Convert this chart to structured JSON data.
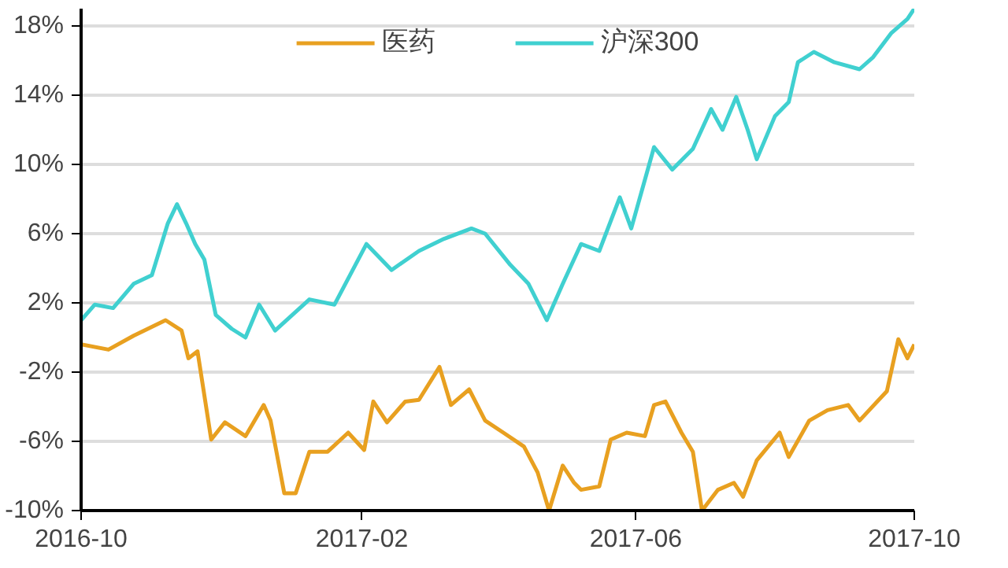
{
  "chart_data": {
    "type": "line",
    "xlim": [
      "2016-10-01",
      "2017-10-01"
    ],
    "ylim": [
      -10,
      19
    ],
    "xticks": [
      "2016-10",
      "2017-02",
      "2017-06",
      "2017-10"
    ],
    "yticks": [
      {
        "value": 18,
        "label": "18%"
      },
      {
        "value": 14,
        "label": "14%"
      },
      {
        "value": 10,
        "label": "10%"
      },
      {
        "value": 6,
        "label": "6%"
      },
      {
        "value": 2,
        "label": "2%"
      },
      {
        "value": -2,
        "label": "-2%"
      },
      {
        "value": -6,
        "label": "-6%"
      },
      {
        "value": -10,
        "label": "-10%"
      }
    ],
    "grid": "y",
    "legend": "top",
    "line_style": "solid",
    "series": [
      {
        "name": "医药",
        "color": "#e8a020",
        "x": [
          "2016-10-01",
          "2016-10-13",
          "2016-10-24",
          "2016-11-07",
          "2016-11-14",
          "2016-11-17",
          "2016-11-21",
          "2016-11-27",
          "2016-12-03",
          "2016-12-12",
          "2016-12-20",
          "2016-12-23",
          "2016-12-29",
          "2017-01-03",
          "2017-01-09",
          "2017-01-17",
          "2017-01-26",
          "2017-02-02",
          "2017-02-06",
          "2017-02-12",
          "2017-02-20",
          "2017-02-26",
          "2017-03-07",
          "2017-03-12",
          "2017-03-20",
          "2017-03-27",
          "2017-04-04",
          "2017-04-13",
          "2017-04-19",
          "2017-04-24",
          "2017-04-30",
          "2017-05-05",
          "2017-05-08",
          "2017-05-16",
          "2017-05-21",
          "2017-05-28",
          "2017-06-05",
          "2017-06-09",
          "2017-06-14",
          "2017-06-21",
          "2017-06-26",
          "2017-06-30",
          "2017-07-07",
          "2017-07-14",
          "2017-07-18",
          "2017-07-24",
          "2017-08-03",
          "2017-08-07",
          "2017-08-16",
          "2017-08-24",
          "2017-09-02",
          "2017-09-07",
          "2017-09-19",
          "2017-09-24",
          "2017-09-28",
          "2017-10-01"
        ],
        "values": [
          -0.4,
          -0.7,
          0.1,
          1.0,
          0.4,
          -1.2,
          -0.8,
          -5.9,
          -4.9,
          -5.7,
          -3.9,
          -4.8,
          -9.0,
          -9.0,
          -6.6,
          -6.6,
          -5.5,
          -6.5,
          -3.7,
          -4.9,
          -3.7,
          -3.6,
          -1.7,
          -3.9,
          -3.0,
          -4.8,
          -5.5,
          -6.3,
          -7.8,
          -10.0,
          -7.4,
          -8.4,
          -8.8,
          -8.6,
          -5.9,
          -5.5,
          -5.7,
          -3.9,
          -3.7,
          -5.5,
          -6.6,
          -10.0,
          -8.8,
          -8.4,
          -9.2,
          -7.1,
          -5.5,
          -6.9,
          -4.8,
          -4.2,
          -3.9,
          -4.8,
          -3.1,
          -0.1,
          -1.2,
          -0.4
        ]
      },
      {
        "name": "沪深300",
        "color": "#40d0d0",
        "x": [
          "2016-10-01",
          "2016-10-07",
          "2016-10-15",
          "2016-10-24",
          "2016-11-01",
          "2016-11-08",
          "2016-11-12",
          "2016-11-16",
          "2016-11-20",
          "2016-11-24",
          "2016-11-29",
          "2016-12-06",
          "2016-12-12",
          "2016-12-18",
          "2016-12-25",
          "2017-01-09",
          "2017-01-20",
          "2017-02-03",
          "2017-02-14",
          "2017-02-26",
          "2017-03-09",
          "2017-03-21",
          "2017-03-27",
          "2017-04-07",
          "2017-04-15",
          "2017-04-23",
          "2017-04-30",
          "2017-05-08",
          "2017-05-16",
          "2017-05-25",
          "2017-05-30",
          "2017-06-09",
          "2017-06-17",
          "2017-06-26",
          "2017-07-04",
          "2017-07-09",
          "2017-07-15",
          "2017-07-20",
          "2017-07-24",
          "2017-08-01",
          "2017-08-07",
          "2017-08-11",
          "2017-08-18",
          "2017-08-27",
          "2017-09-07",
          "2017-09-13",
          "2017-09-21",
          "2017-09-28",
          "2017-10-01"
        ],
        "values": [
          1.0,
          1.9,
          1.7,
          3.1,
          3.6,
          6.6,
          7.7,
          6.6,
          5.4,
          4.5,
          1.3,
          0.5,
          0.0,
          1.9,
          0.4,
          2.2,
          1.9,
          5.4,
          3.9,
          5.0,
          5.7,
          6.3,
          6.0,
          4.2,
          3.1,
          1.0,
          3.1,
          5.4,
          5.0,
          8.1,
          6.3,
          11.0,
          9.7,
          10.9,
          13.2,
          12.0,
          13.9,
          12.0,
          10.3,
          12.8,
          13.6,
          15.9,
          16.5,
          15.9,
          15.5,
          16.2,
          17.6,
          18.4,
          19.0
        ]
      }
    ]
  }
}
